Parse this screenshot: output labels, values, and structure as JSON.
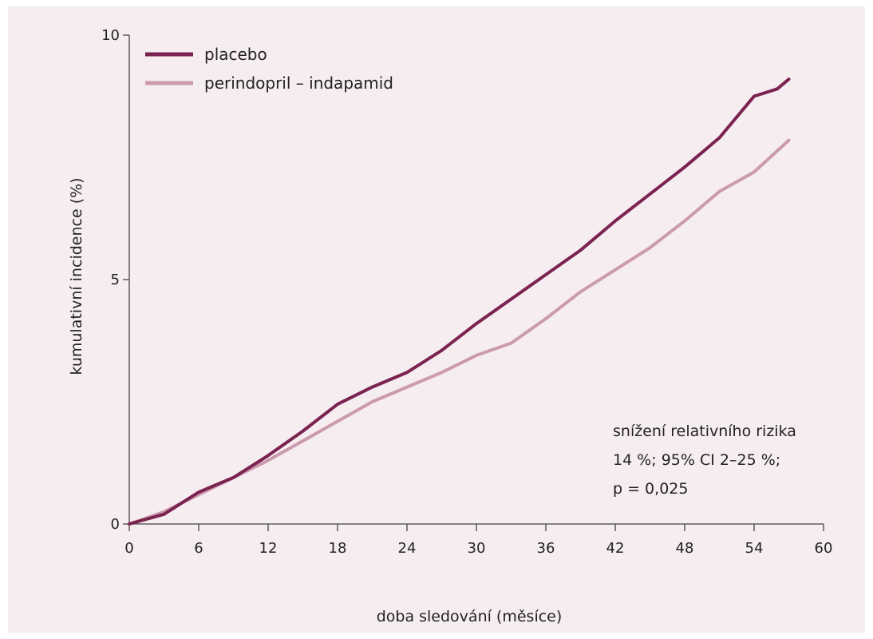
{
  "chart_data": {
    "type": "line",
    "xlabel": "doba sledování (měsíce)",
    "ylabel": "kumulativní incidence (%)",
    "xlim": [
      0,
      60
    ],
    "ylim": [
      0,
      10
    ],
    "x_ticks": [
      0,
      6,
      12,
      18,
      24,
      30,
      36,
      42,
      48,
      54,
      60
    ],
    "y_ticks": [
      0,
      5,
      10
    ],
    "grid": false,
    "legend_position": "top-left",
    "series": [
      {
        "name": "placebo",
        "color": "#7b2350",
        "x": [
          0,
          3,
          6,
          9,
          12,
          15,
          18,
          21,
          24,
          27,
          30,
          33,
          36,
          39,
          42,
          45,
          48,
          51,
          54,
          56,
          57
        ],
        "y": [
          0,
          0.2,
          0.65,
          0.95,
          1.4,
          1.9,
          2.45,
          2.8,
          3.1,
          3.55,
          4.1,
          4.6,
          5.1,
          5.6,
          6.2,
          6.75,
          7.3,
          7.9,
          8.75,
          8.9,
          9.1
        ]
      },
      {
        "name": "perindopril – indapamid",
        "color": "#cb9aae",
        "x": [
          0,
          3,
          6,
          9,
          12,
          15,
          18,
          21,
          24,
          27,
          30,
          33,
          36,
          39,
          42,
          45,
          48,
          51,
          54,
          57
        ],
        "y": [
          0,
          0.25,
          0.6,
          0.95,
          1.3,
          1.7,
          2.1,
          2.5,
          2.8,
          3.1,
          3.45,
          3.7,
          4.2,
          4.75,
          5.2,
          5.65,
          6.2,
          6.8,
          7.2,
          7.85
        ]
      }
    ],
    "annotation": [
      "snížení relativního rizika",
      "14 %; 95% CI 2–25 %;",
      "p = 0,025"
    ]
  }
}
